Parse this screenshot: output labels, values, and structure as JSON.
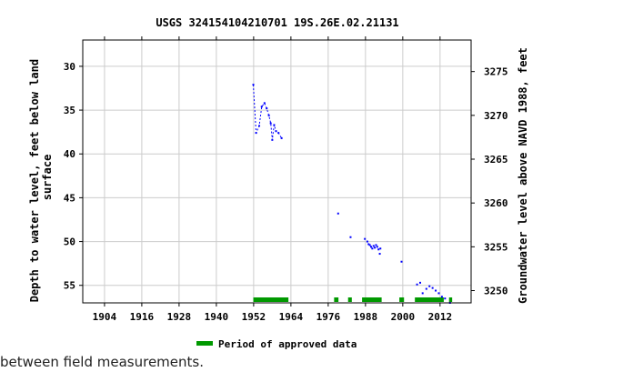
{
  "chart_data": {
    "type": "scatter",
    "title": "USGS 324154104210701 19S.26E.02.21131",
    "ylabel_left": [
      "Depth to water level, feet below land",
      "surface"
    ],
    "ylabel_right": "Groundwater level above NAVD 1988, feet",
    "xlim": [
      1897,
      2022
    ],
    "ylim_left": [
      27,
      57
    ],
    "ylim_right": [
      3278.6,
      3248.6
    ],
    "x_ticks": [
      1904,
      1916,
      1928,
      1940,
      1952,
      1964,
      1976,
      1988,
      2000,
      2012
    ],
    "y_ticks_left": [
      30,
      35,
      40,
      45,
      50,
      55
    ],
    "y_ticks_right": [
      3275,
      3270,
      3265,
      3260,
      3255,
      3250
    ],
    "grid": true,
    "series": [
      {
        "type": "line-dashed",
        "color": "#0000ff",
        "values": [
          [
            1951.9,
            32.1
          ],
          [
            1952.8,
            37.6
          ],
          [
            1953.8,
            36.8
          ],
          [
            1954.6,
            34.6
          ],
          [
            1955.5,
            34.2
          ],
          [
            1956.2,
            34.8
          ],
          [
            1956.9,
            35.6
          ],
          [
            1957.5,
            36.5
          ],
          [
            1958.0,
            38.4
          ],
          [
            1958.6,
            36.7
          ],
          [
            1959.2,
            37.4
          ],
          [
            1960.0,
            37.6
          ],
          [
            1961.0,
            38.2
          ]
        ]
      },
      {
        "type": "points",
        "color": "#0000ff",
        "values": [
          [
            1979.2,
            46.8
          ],
          [
            1983.2,
            49.5
          ],
          [
            1987.8,
            49.7
          ],
          [
            1988.6,
            50.0
          ],
          [
            1989.0,
            50.3
          ],
          [
            1989.4,
            50.4
          ],
          [
            1989.8,
            50.6
          ],
          [
            1990.2,
            50.8
          ],
          [
            1990.6,
            50.5
          ],
          [
            1991.0,
            50.7
          ],
          [
            1991.4,
            50.4
          ],
          [
            1991.8,
            50.6
          ],
          [
            1992.2,
            50.9
          ],
          [
            1992.6,
            51.4
          ],
          [
            1992.8,
            50.8
          ],
          [
            1999.6,
            52.3
          ],
          [
            2004.6,
            54.9
          ],
          [
            2005.6,
            54.7
          ],
          [
            2006.4,
            55.9
          ],
          [
            2007.6,
            55.4
          ],
          [
            2008.6,
            55.1
          ],
          [
            2009.6,
            55.3
          ],
          [
            2010.6,
            55.6
          ],
          [
            2011.6,
            55.9
          ],
          [
            2012.6,
            56.3
          ],
          [
            2013.6,
            56.5
          ],
          [
            2015.2,
            57.0
          ]
        ]
      }
    ],
    "approved_periods": [
      [
        1951.9,
        1963.2
      ],
      [
        1977.9,
        1979.3
      ],
      [
        1982.4,
        1983.6
      ],
      [
        1986.9,
        1993.2
      ],
      [
        1998.9,
        2000.4
      ],
      [
        2003.9,
        2013.2
      ],
      [
        2014.9,
        2015.9
      ]
    ],
    "approved_color": "#009900",
    "legend": {
      "label": "Period of approved data",
      "position": "bottom"
    }
  },
  "footnote": "between field measurements."
}
